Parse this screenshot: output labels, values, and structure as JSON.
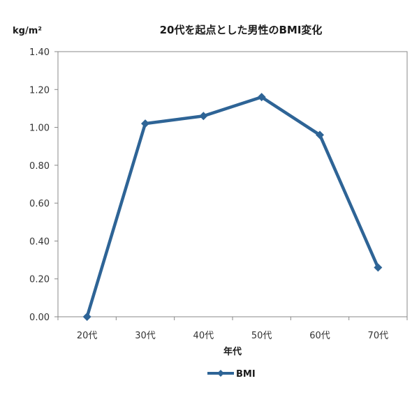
{
  "chart_data": {
    "type": "line",
    "title": "20代を起点とした男性のBMI変化",
    "ylabel": "kg/m²",
    "xlabel": "年代",
    "categories": [
      "20代",
      "30代",
      "40代",
      "50代",
      "60代",
      "70代"
    ],
    "series": [
      {
        "name": "BMI",
        "values": [
          0.0,
          1.02,
          1.06,
          1.16,
          0.96,
          0.26
        ],
        "color": "#2e6496"
      }
    ],
    "ylim": [
      0,
      1.4
    ],
    "yticks": [
      "0.00",
      "0.20",
      "0.40",
      "0.60",
      "0.80",
      "1.00",
      "1.20",
      "1.40"
    ],
    "grid": false,
    "legend": "bottom-center",
    "marker": "diamond"
  }
}
